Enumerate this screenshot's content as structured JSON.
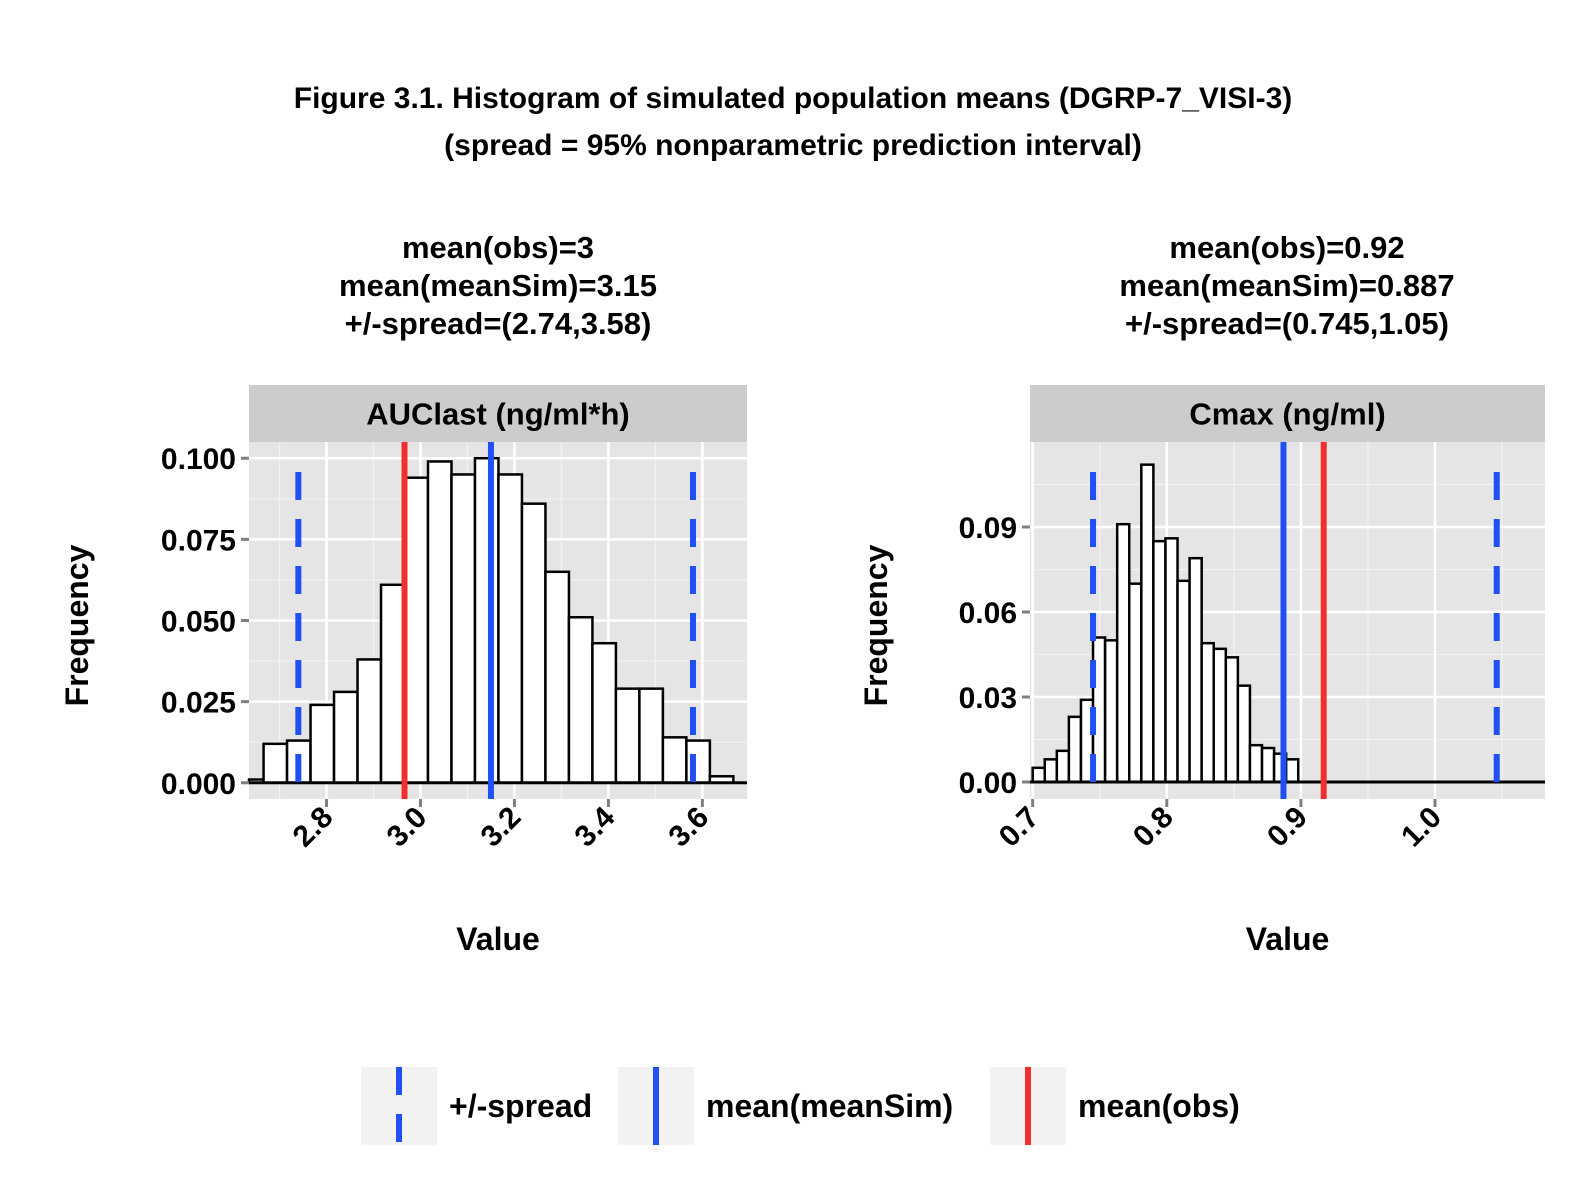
{
  "title_line1": "Figure 3.1. Histogram of simulated population means (DGRP-7_VISI-3)",
  "title_line2": "(spread = 95% nonparametric prediction interval)",
  "legend": [
    {
      "label": "+/-spread",
      "color": "#2050f0",
      "style": "dashed"
    },
    {
      "label": "mean(meanSim)",
      "color": "#2050f0",
      "style": "solid"
    },
    {
      "label": "mean(obs)",
      "color": "#f03030",
      "style": "solid"
    }
  ],
  "chart_data": [
    {
      "type": "bar",
      "subtitle": [
        "mean(obs)=3",
        "mean(meanSim)=3.15",
        "+/-spread=(2.74,3.58)"
      ],
      "facet": "AUClast (ng/ml*h)",
      "xlabel": "Value",
      "ylabel": "Frequency",
      "xlim": [
        2.635,
        3.695
      ],
      "ylim": [
        -0.005,
        0.105
      ],
      "xticks": [
        {
          "v": 2.8,
          "label": "2.8"
        },
        {
          "v": 3.0,
          "label": "3.0"
        },
        {
          "v": 3.2,
          "label": "3.2"
        },
        {
          "v": 3.4,
          "label": "3.4"
        },
        {
          "v": 3.6,
          "label": "3.6"
        }
      ],
      "yticks": [
        {
          "v": 0,
          "label": "0.000"
        },
        {
          "v": 0.025,
          "label": "0.025"
        },
        {
          "v": 0.05,
          "label": "0.050"
        },
        {
          "v": 0.075,
          "label": "0.075"
        },
        {
          "v": 0.1,
          "label": "0.100"
        }
      ],
      "bin_start": 2.616,
      "bin_width": 0.05,
      "values": [
        0.001,
        0.012,
        0.013,
        0.024,
        0.028,
        0.038,
        0.061,
        0.094,
        0.099,
        0.095,
        0.1,
        0.095,
        0.086,
        0.065,
        0.051,
        0.043,
        0.029,
        0.029,
        0.014,
        0.013,
        0.002
      ],
      "mean_obs": 2.966,
      "mean_meanSim": 3.15,
      "spread": [
        2.74,
        3.58
      ]
    },
    {
      "type": "bar",
      "subtitle": [
        "mean(obs)=0.92",
        "mean(meanSim)=0.887",
        "+/-spread=(0.745,1.05)"
      ],
      "facet": "Cmax (ng/ml)",
      "xlabel": "Value",
      "ylabel": "Frequency",
      "xlim": [
        0.698,
        1.082
      ],
      "ylim": [
        -0.006,
        0.12
      ],
      "xticks": [
        {
          "v": 0.7,
          "label": "0.7"
        },
        {
          "v": 0.8,
          "label": "0.8"
        },
        {
          "v": 0.9,
          "label": "0.9"
        },
        {
          "v": 1.0,
          "label": "1.0"
        }
      ],
      "yticks": [
        {
          "v": 0,
          "label": "0.00"
        },
        {
          "v": 0.03,
          "label": "0.03"
        },
        {
          "v": 0.06,
          "label": "0.06"
        },
        {
          "v": 0.09,
          "label": "0.09"
        }
      ],
      "bin_start": 0.7,
      "bin_width": 0.009,
      "values": [
        0.005,
        0.008,
        0.011,
        0.023,
        0.029,
        0.051,
        0.05,
        0.091,
        0.07,
        0.112,
        0.085,
        0.086,
        0.071,
        0.079,
        0.049,
        0.047,
        0.044,
        0.034,
        0.013,
        0.012,
        0.01,
        0.008
      ],
      "mean_obs": 0.917,
      "mean_meanSim": 0.887,
      "spread": [
        0.745,
        1.046
      ]
    }
  ]
}
